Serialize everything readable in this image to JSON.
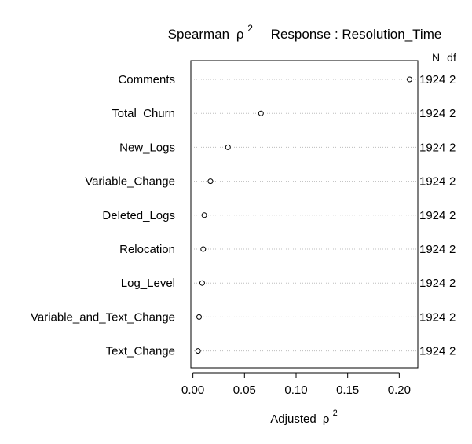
{
  "chart_data": {
    "type": "scatter",
    "title_prefix": "Spearman",
    "title_symbol": "ρ",
    "title_power": "2",
    "title_response": "Response : Resolution_Time",
    "xlabel_prefix": "Adjusted",
    "xlabel_symbol": "ρ",
    "xlabel_power": "2",
    "xlim": [
      -0.002,
      0.218
    ],
    "xticks": [
      "0.00",
      "0.05",
      "0.10",
      "0.15",
      "0.20"
    ],
    "xtick_values": [
      0.0,
      0.05,
      0.1,
      0.15,
      0.2
    ],
    "right_header_n": "N",
    "right_header_df": "df",
    "grid": "dotted horizontal guide per row",
    "rows": [
      {
        "label": "Comments",
        "value": 0.21,
        "n": "1924",
        "df": "2"
      },
      {
        "label": "Total_Churn",
        "value": 0.066,
        "n": "1924",
        "df": "2"
      },
      {
        "label": "New_Logs",
        "value": 0.034,
        "n": "1924",
        "df": "2"
      },
      {
        "label": "Variable_Change",
        "value": 0.017,
        "n": "1924",
        "df": "2"
      },
      {
        "label": "Deleted_Logs",
        "value": 0.011,
        "n": "1924",
        "df": "2"
      },
      {
        "label": "Relocation",
        "value": 0.01,
        "n": "1924",
        "df": "2"
      },
      {
        "label": "Log_Level",
        "value": 0.009,
        "n": "1924",
        "df": "2"
      },
      {
        "label": "Variable_and_Text_Change",
        "value": 0.006,
        "n": "1924",
        "df": "2"
      },
      {
        "label": "Text_Change",
        "value": 0.005,
        "n": "1924",
        "df": "2"
      }
    ]
  }
}
